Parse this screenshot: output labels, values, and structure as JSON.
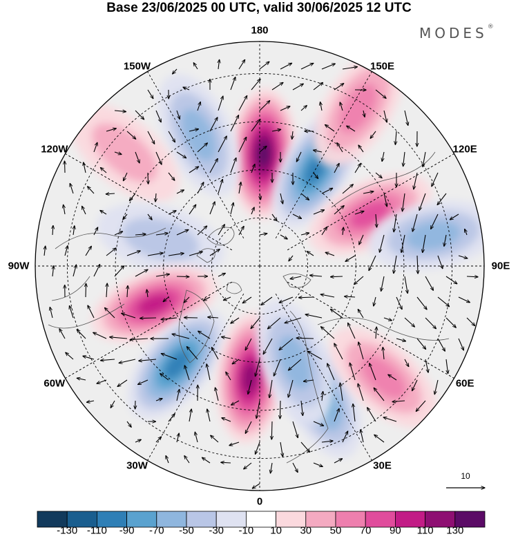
{
  "title": "Base 23/06/2025 00 UTC, valid 30/06/2025 12 UTC",
  "logo": {
    "text": "MODES",
    "mark": "®"
  },
  "map": {
    "projection": "north-polar-stereographic",
    "longitude_labels": [
      {
        "text": "180",
        "lon": 180
      },
      {
        "text": "150E",
        "lon": 150
      },
      {
        "text": "120E",
        "lon": 120
      },
      {
        "text": "90E",
        "lon": 90
      },
      {
        "text": "60E",
        "lon": 60
      },
      {
        "text": "30E",
        "lon": 30
      },
      {
        "text": "0",
        "lon": 0
      },
      {
        "text": "30W",
        "lon": -30
      },
      {
        "text": "60W",
        "lon": -60
      },
      {
        "text": "90W",
        "lon": -90
      },
      {
        "text": "120W",
        "lon": -120
      },
      {
        "text": "150W",
        "lon": -150
      }
    ],
    "reference_vector": "10",
    "anomaly_centers": [
      {
        "sign": "positive",
        "level": 130,
        "lon": 178,
        "lat": 55
      },
      {
        "sign": "negative",
        "level": -90,
        "lon": 150,
        "lat": 55
      },
      {
        "sign": "positive",
        "level": 50,
        "lon": 148,
        "lat": 32
      },
      {
        "sign": "positive",
        "level": 70,
        "lon": 115,
        "lat": 52
      },
      {
        "sign": "negative",
        "level": -50,
        "lon": 100,
        "lat": 35
      },
      {
        "sign": "negative",
        "level": -50,
        "lon": -155,
        "lat": 45
      },
      {
        "sign": "positive",
        "level": 30,
        "lon": -130,
        "lat": 35
      },
      {
        "sign": "negative",
        "level": -30,
        "lon": -105,
        "lat": 58
      },
      {
        "sign": "positive",
        "level": 90,
        "lon": -70,
        "lat": 55
      },
      {
        "sign": "negative",
        "level": -90,
        "lon": -40,
        "lat": 50
      },
      {
        "sign": "positive",
        "level": 110,
        "lon": -5,
        "lat": 55
      },
      {
        "sign": "negative",
        "level": -70,
        "lon": 25,
        "lat": 45
      },
      {
        "sign": "negative",
        "level": -50,
        "lon": 20,
        "lat": 58
      },
      {
        "sign": "positive",
        "level": 50,
        "lon": 48,
        "lat": 38
      }
    ]
  },
  "colorbar": {
    "ticks": [
      "-130",
      "-110",
      "-90",
      "-70",
      "-50",
      "-30",
      "-10",
      "10",
      "30",
      "50",
      "70",
      "90",
      "110",
      "130"
    ],
    "colors": [
      "#123a5c",
      "#1a5e8f",
      "#2f7fb6",
      "#5aa2cf",
      "#8fb6de",
      "#b9c6e6",
      "#dfe2f1",
      "#ffffff",
      "#fbd9de",
      "#f4aac1",
      "#ee7fae",
      "#e04c9c",
      "#c21c86",
      "#8e0f72",
      "#5b0b66"
    ]
  }
}
